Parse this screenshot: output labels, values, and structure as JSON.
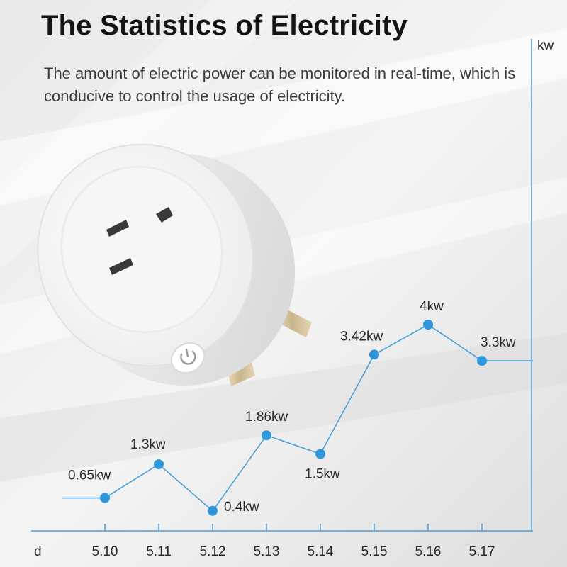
{
  "header": {
    "title": "The Statistics of Electricity",
    "subtitle": "The amount of electric power can be monitored in real-time, which is conducive to control the usage of electricity."
  },
  "colors": {
    "line": "#4a9fd8",
    "point": "#2f96dc",
    "text": "#2a2a2a"
  },
  "chart_data": {
    "type": "line",
    "title": "",
    "xlabel": "d",
    "ylabel": "kw",
    "categories": [
      "5.10",
      "5.11",
      "5.12",
      "5.13",
      "5.14",
      "5.15",
      "5.16",
      "5.17"
    ],
    "values": [
      0.65,
      1.3,
      0.4,
      1.86,
      1.5,
      3.42,
      4,
      3.3
    ],
    "data_labels": [
      "0.65kw",
      "1.3kw",
      "0.4kw",
      "1.86kw",
      "1.5kw",
      "3.42kw",
      "4kw",
      "3.3kw"
    ],
    "grid": false
  }
}
